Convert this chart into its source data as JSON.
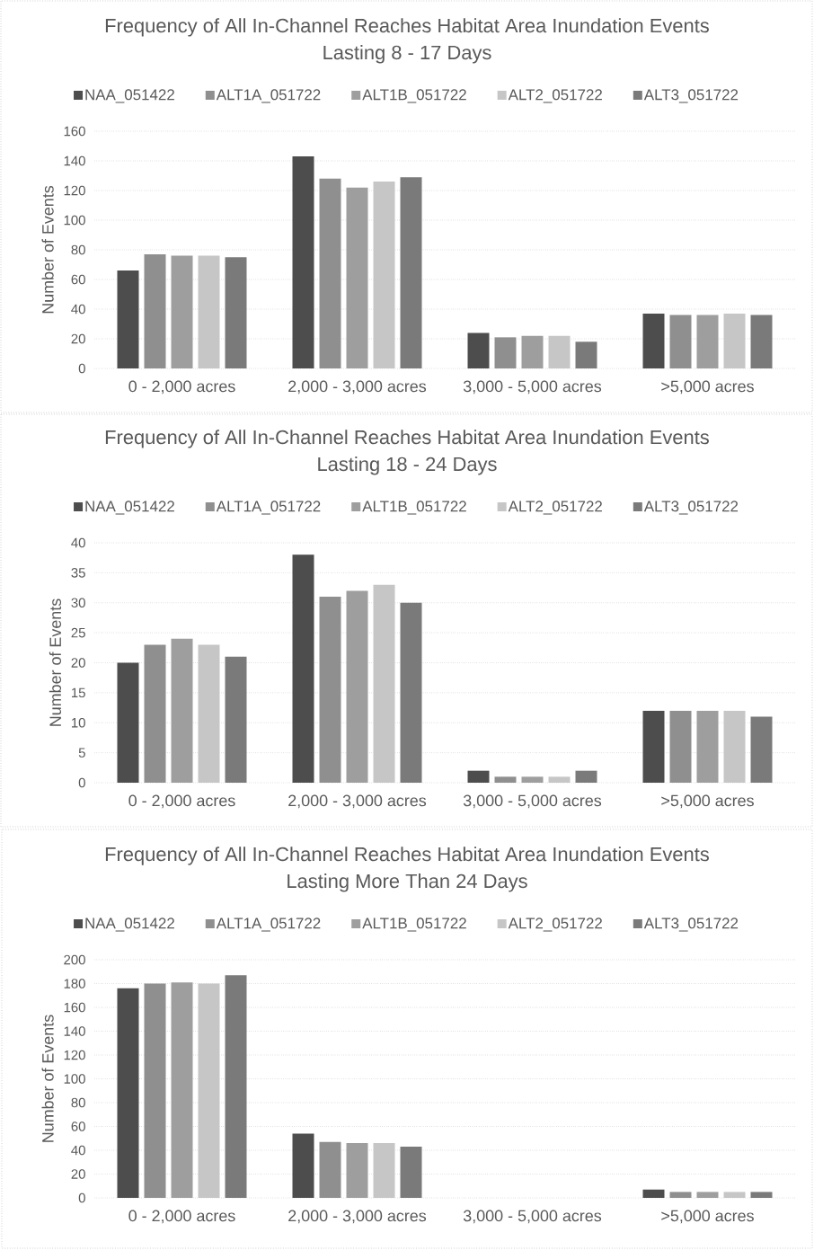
{
  "chart_data": [
    {
      "type": "bar",
      "title": "Frequency of All In-Channel Reaches Habitat Area Inundation Events Lasting 8 - 17 Days",
      "ylabel": "Number of Events",
      "categories": [
        "0 - 2,000 acres",
        "2,000 - 3,000 acres",
        "3,000 - 5,000 acres",
        ">5,000 acres"
      ],
      "series": [
        {
          "name": "NAA_051422",
          "color": "#4d4d4d",
          "values": [
            66,
            143,
            24,
            37
          ]
        },
        {
          "name": "ALT1A_051722",
          "color": "#8f8f8f",
          "values": [
            77,
            128,
            21,
            36
          ]
        },
        {
          "name": "ALT1B_051722",
          "color": "#9e9e9e",
          "values": [
            76,
            122,
            22,
            36
          ]
        },
        {
          "name": "ALT2_051722",
          "color": "#c6c6c6",
          "values": [
            76,
            126,
            22,
            37
          ]
        },
        {
          "name": "ALT3_051722",
          "color": "#7a7a7a",
          "values": [
            75,
            129,
            18,
            36
          ]
        }
      ],
      "ylim": [
        0,
        160
      ],
      "yticks": [
        0,
        20,
        40,
        60,
        80,
        100,
        120,
        140,
        160
      ],
      "grid": "y",
      "legend": "top"
    },
    {
      "type": "bar",
      "title": "Frequency of All In-Channel Reaches Habitat Area Inundation Events Lasting 18 - 24 Days",
      "ylabel": "Number of Events",
      "categories": [
        "0 - 2,000 acres",
        "2,000 - 3,000 acres",
        "3,000 - 5,000 acres",
        ">5,000 acres"
      ],
      "series": [
        {
          "name": "NAA_051422",
          "color": "#4d4d4d",
          "values": [
            20,
            38,
            2,
            12
          ]
        },
        {
          "name": "ALT1A_051722",
          "color": "#8f8f8f",
          "values": [
            23,
            31,
            1,
            12
          ]
        },
        {
          "name": "ALT1B_051722",
          "color": "#9e9e9e",
          "values": [
            24,
            32,
            1,
            12
          ]
        },
        {
          "name": "ALT2_051722",
          "color": "#c6c6c6",
          "values": [
            23,
            33,
            1,
            12
          ]
        },
        {
          "name": "ALT3_051722",
          "color": "#7a7a7a",
          "values": [
            21,
            30,
            2,
            11
          ]
        }
      ],
      "ylim": [
        0,
        40
      ],
      "yticks": [
        0,
        5,
        10,
        15,
        20,
        25,
        30,
        35,
        40
      ],
      "grid": "y",
      "legend": "top"
    },
    {
      "type": "bar",
      "title": "Frequency of All In-Channel Reaches Habitat Area Inundation Events Lasting More Than 24 Days",
      "ylabel": "Number of Events",
      "categories": [
        "0 - 2,000 acres",
        "2,000 - 3,000 acres",
        "3,000 - 5,000 acres",
        ">5,000 acres"
      ],
      "series": [
        {
          "name": "NAA_051422",
          "color": "#4d4d4d",
          "values": [
            176,
            54,
            0,
            7
          ]
        },
        {
          "name": "ALT1A_051722",
          "color": "#8f8f8f",
          "values": [
            180,
            47,
            0,
            5
          ]
        },
        {
          "name": "ALT1B_051722",
          "color": "#9e9e9e",
          "values": [
            181,
            46,
            0,
            5
          ]
        },
        {
          "name": "ALT2_051722",
          "color": "#c6c6c6",
          "values": [
            180,
            46,
            0,
            5
          ]
        },
        {
          "name": "ALT3_051722",
          "color": "#7a7a7a",
          "values": [
            187,
            43,
            0,
            5
          ]
        }
      ],
      "ylim": [
        0,
        200
      ],
      "yticks": [
        0,
        20,
        40,
        60,
        80,
        100,
        120,
        140,
        160,
        180,
        200
      ],
      "grid": "y",
      "legend": "top"
    }
  ]
}
